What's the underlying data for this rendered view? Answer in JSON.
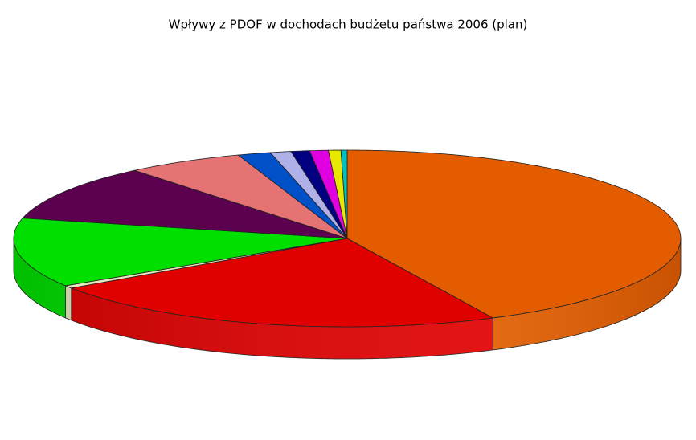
{
  "chart_data": {
    "type": "pie3d",
    "title": "Wpływy z PDOF w  dochodach budżetu państwa 2006 (plan)",
    "values": [
      42.8,
      22.7,
      0.5,
      12.7,
      10.3,
      5.7,
      1.6,
      1.0,
      0.9,
      0.9,
      0.6,
      0.3
    ],
    "colors": [
      "#e35d00",
      "#e00000",
      "#e8e8c0",
      "#00e000",
      "#5c0050",
      "#e57373",
      "#0050c8",
      "#b0b0e8",
      "#000080",
      "#e000e0",
      "#e8e800",
      "#00c0c0"
    ]
  }
}
